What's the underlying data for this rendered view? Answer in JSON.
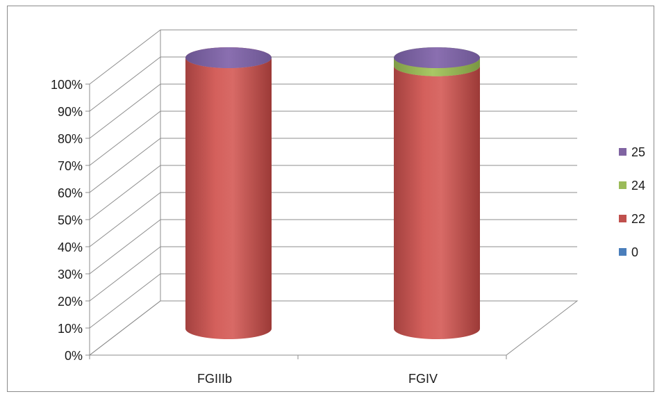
{
  "chart_data": {
    "type": "bar",
    "style": "3d-stacked-100-percent-cylinder",
    "categories": [
      "FGIIIb",
      "FGIV"
    ],
    "series": [
      {
        "name": "0",
        "values": [
          0,
          0
        ],
        "color": "#4a7ebb"
      },
      {
        "name": "22",
        "values": [
          100,
          97
        ],
        "color": "#c0504d"
      },
      {
        "name": "24",
        "values": [
          0,
          3
        ],
        "color": "#9bbb59"
      },
      {
        "name": "25",
        "values": [
          0,
          0
        ],
        "color": "#8064a2"
      }
    ],
    "ylim": [
      0,
      100
    ],
    "y_ticks": [
      "0%",
      "10%",
      "20%",
      "30%",
      "40%",
      "50%",
      "60%",
      "70%",
      "80%",
      "90%",
      "100%"
    ],
    "grid": true,
    "legend_position": "right",
    "legend_order": [
      "25",
      "24",
      "22",
      "0"
    ]
  }
}
